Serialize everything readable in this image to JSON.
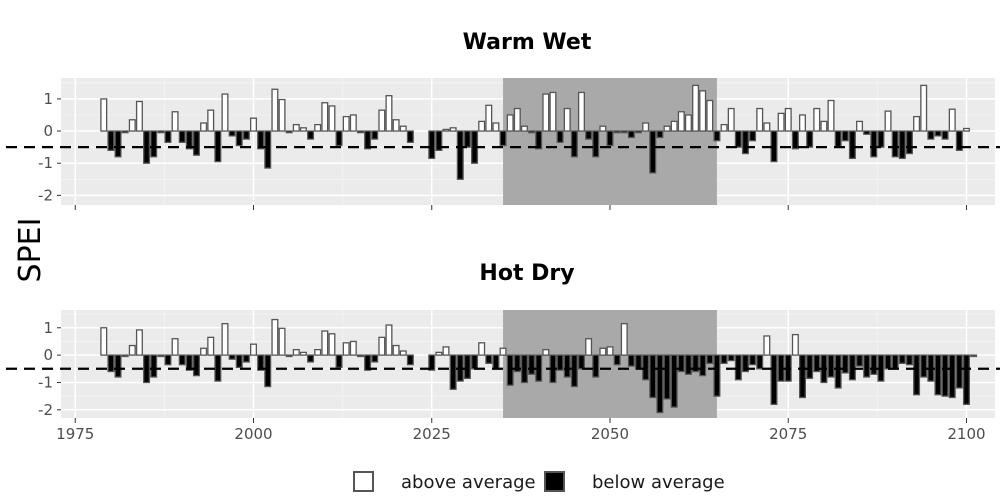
{
  "chart_data": {
    "type": "bar",
    "ylabel": "SPEI",
    "xlim": [
      1973,
      2104
    ],
    "ylim": [
      -2.3,
      1.65
    ],
    "x_ticks": [
      1975,
      2000,
      2025,
      2050,
      2075,
      2100
    ],
    "y_ticks": [
      1,
      0,
      -1,
      -2
    ],
    "y_tick_labels": [
      "1",
      "0",
      "-1",
      "-2"
    ],
    "threshold": -0.5,
    "highlight_period": [
      2035,
      2065
    ],
    "legend": {
      "position": "bottom",
      "items": [
        "above average",
        "below average"
      ]
    },
    "colors": {
      "above": "#ffffff",
      "below": "#000000",
      "highlight": "#a9a9a9",
      "panel": "#ebebeb"
    },
    "panels": [
      {
        "title": "Warm Wet",
        "start_year": 1979,
        "values": [
          1.0,
          -0.6,
          -0.8,
          -0.05,
          0.35,
          0.92,
          -1.0,
          -0.8,
          -0.05,
          -0.35,
          0.6,
          -0.35,
          -0.55,
          -0.75,
          0.25,
          0.65,
          -0.95,
          1.15,
          -0.15,
          -0.45,
          -0.25,
          0.4,
          -0.55,
          -1.15,
          1.3,
          0.98,
          -0.05,
          0.2,
          0.1,
          -0.25,
          0.2,
          0.88,
          0.78,
          -0.45,
          0.45,
          0.5,
          -0.05,
          -0.55,
          -0.25,
          0.65,
          1.1,
          0.35,
          0.15,
          -0.35,
          null,
          null,
          -0.85,
          -0.6,
          0.05,
          0.1,
          -1.5,
          -0.5,
          -1.0,
          0.3,
          0.8,
          0.25,
          -0.45,
          0.5,
          0.7,
          0.15,
          -0.05,
          -0.55,
          1.15,
          1.2,
          -0.35,
          0.7,
          -0.8,
          1.2,
          -0.25,
          -0.8,
          0.15,
          -0.45,
          -0.05,
          -0.05,
          -0.2,
          -0.05,
          0.25,
          -1.3,
          -0.2,
          0.15,
          0.3,
          0.6,
          0.5,
          1.42,
          1.25,
          0.95,
          -0.3,
          0.2,
          0.7,
          -0.5,
          -0.7,
          -0.3,
          0.7,
          0.25,
          -0.95,
          0.55,
          0.7,
          -0.55,
          0.5,
          -0.5,
          0.7,
          0.3,
          0.95,
          -0.5,
          -0.3,
          -0.85,
          0.3,
          -0.1,
          -0.8,
          -0.5,
          0.62,
          -0.8,
          -0.85,
          -0.7,
          0.45,
          1.42,
          -0.25,
          -0.15,
          -0.25,
          0.68,
          -0.6,
          0.08
        ]
      },
      {
        "title": "Hot Dry",
        "start_year": 1979,
        "values": [
          1.0,
          -0.6,
          -0.8,
          -0.05,
          0.35,
          0.92,
          -1.0,
          -0.8,
          -0.05,
          -0.35,
          0.6,
          -0.35,
          -0.55,
          -0.75,
          0.25,
          0.65,
          -0.95,
          1.15,
          -0.15,
          -0.45,
          -0.25,
          0.4,
          -0.55,
          -1.15,
          1.3,
          0.98,
          -0.05,
          0.2,
          0.1,
          -0.25,
          0.2,
          0.88,
          0.78,
          -0.45,
          0.45,
          0.5,
          -0.05,
          -0.55,
          -0.25,
          0.65,
          1.1,
          0.35,
          0.15,
          -0.35,
          null,
          null,
          -0.55,
          0.1,
          0.3,
          -1.25,
          -0.95,
          -0.85,
          -0.5,
          0.45,
          -0.3,
          -0.5,
          0.25,
          -1.1,
          -0.6,
          -1.0,
          -0.7,
          -0.95,
          0.2,
          -1.0,
          -0.55,
          -0.8,
          -1.15,
          -0.5,
          0.6,
          -0.8,
          0.25,
          0.3,
          -0.35,
          1.15,
          -0.4,
          -0.5,
          -0.9,
          -1.55,
          -2.1,
          -1.6,
          -1.9,
          -0.6,
          -0.7,
          -0.6,
          -0.75,
          -0.3,
          -1.5,
          -0.3,
          -0.2,
          -0.9,
          -0.6,
          -0.35,
          -0.5,
          0.7,
          -1.8,
          -0.95,
          -0.95,
          0.75,
          -1.55,
          -0.85,
          -0.6,
          -1.0,
          -0.8,
          -1.2,
          -0.65,
          -0.9,
          -0.4,
          -0.8,
          -0.7,
          -0.95,
          -0.5,
          -0.5,
          -0.3,
          -0.35,
          -1.45,
          -0.8,
          -0.95,
          -1.45,
          -1.5,
          -1.55,
          -1.2,
          -1.8,
          -0.05
        ]
      }
    ]
  }
}
